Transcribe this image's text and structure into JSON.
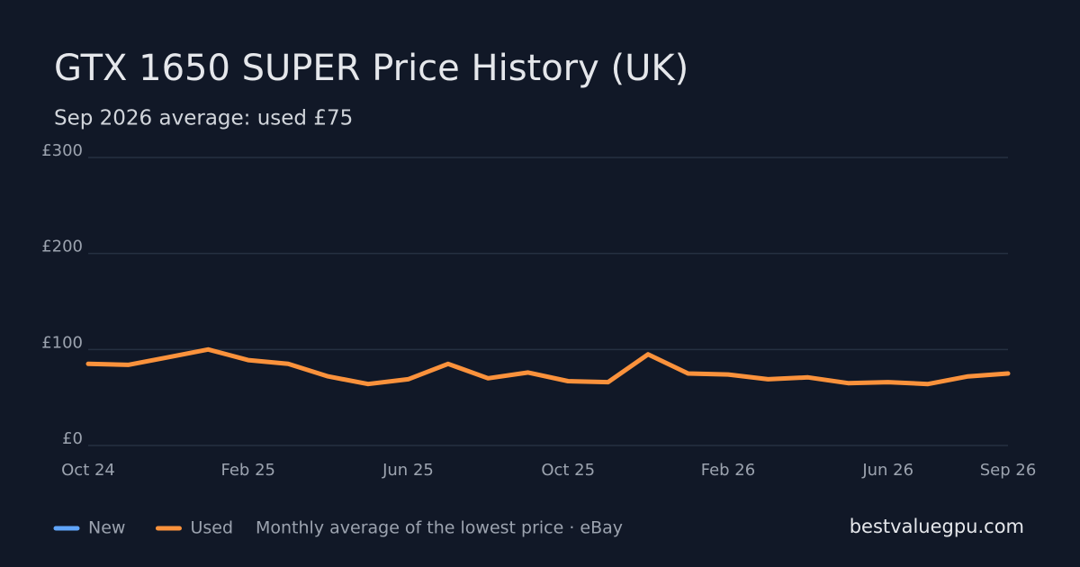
{
  "chart_data": {
    "type": "line",
    "title": "GTX 1650 SUPER Price History (UK)",
    "subtitle": "Sep 2026 average: used £75",
    "categories": [
      "Oct 24",
      null,
      null,
      null,
      "Feb 25",
      null,
      null,
      null,
      "Jun 25",
      null,
      null,
      null,
      "Oct 25",
      null,
      null,
      null,
      "Feb 26",
      null,
      null,
      null,
      "Jun 26",
      null,
      null,
      "Sep 26"
    ],
    "series": [
      {
        "name": "New",
        "color": "#60a5fa",
        "values": [
          null,
          null,
          null,
          null,
          null,
          null,
          null,
          null,
          null,
          null,
          null,
          null,
          null,
          null,
          null,
          null,
          null,
          null,
          null,
          null,
          null,
          null,
          null,
          null
        ]
      },
      {
        "name": "Used",
        "color": "#fb923c",
        "values": [
          85,
          84,
          92,
          100,
          89,
          85,
          72,
          64,
          69,
          85,
          70,
          76,
          67,
          66,
          95,
          75,
          74,
          69,
          71,
          65,
          66,
          64,
          72,
          75
        ]
      }
    ],
    "ylim": [
      0,
      300
    ],
    "yticks": [
      {
        "value": 0,
        "label": "£0"
      },
      {
        "value": 100,
        "label": "£100"
      },
      {
        "value": 200,
        "label": "£200"
      },
      {
        "value": 300,
        "label": "£300"
      }
    ],
    "grid": true,
    "note": "Monthly average of the lowest price · eBay",
    "source": "bestvaluegpu.com"
  }
}
